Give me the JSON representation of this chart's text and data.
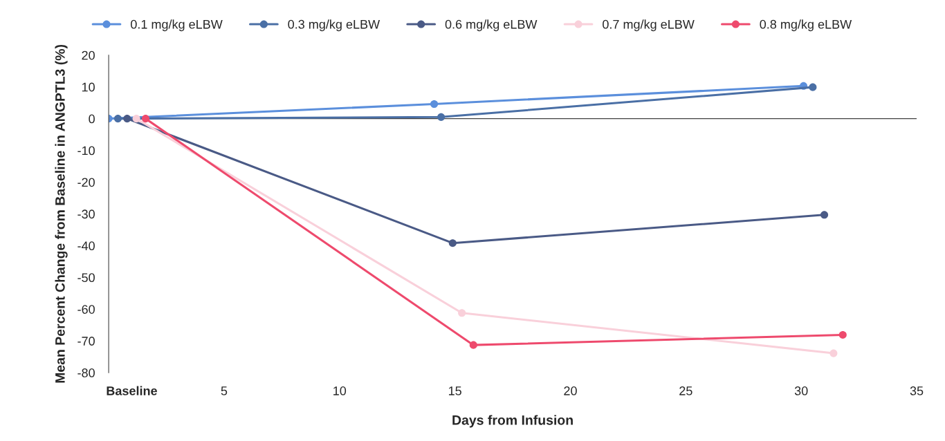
{
  "chart_data": {
    "type": "line",
    "xlabel": "Days from Infusion",
    "ylabel": "Mean Percent Change from Baseline in ANGPTL3 (%)",
    "xlim": [
      0,
      35
    ],
    "xticks": [
      {
        "value": 1,
        "label": "Baseline"
      },
      5,
      10,
      15,
      20,
      25,
      30,
      35
    ],
    "ylim": [
      -80,
      20
    ],
    "yticks": [
      -80,
      -70,
      -60,
      -50,
      -40,
      -30,
      -20,
      -10,
      0,
      10,
      20
    ],
    "grid": false,
    "legend": "top",
    "marker": "circle",
    "line_style": "solid",
    "ref_lines": [
      {
        "axis": "y",
        "value": 0,
        "color": "#404040"
      }
    ],
    "series": [
      {
        "name": "0.1 mg/kg eLBW",
        "color": "#5b8fdc",
        "x": [
          0,
          14.1,
          30.1
        ],
        "values": [
          0,
          4.6,
          10.3
        ]
      },
      {
        "name": "0.3 mg/kg eLBW",
        "color": "#4a6fa5",
        "x": [
          0.4,
          14.4,
          30.5
        ],
        "values": [
          0,
          0.5,
          9.9
        ]
      },
      {
        "name": "0.6 mg/kg eLBW",
        "color": "#4a5a86",
        "x": [
          0.8,
          14.9,
          31.0
        ],
        "values": [
          0,
          -39.2,
          -30.3
        ]
      },
      {
        "name": "0.7 mg/kg eLBW",
        "color": "#f9d0da",
        "x": [
          1.2,
          15.3,
          31.4
        ],
        "values": [
          0,
          -61.2,
          -73.9
        ]
      },
      {
        "name": "0.8 mg/kg eLBW",
        "color": "#ee4a6d",
        "x": [
          1.6,
          15.8,
          31.8
        ],
        "values": [
          0,
          -71.3,
          -68.1
        ]
      }
    ]
  }
}
